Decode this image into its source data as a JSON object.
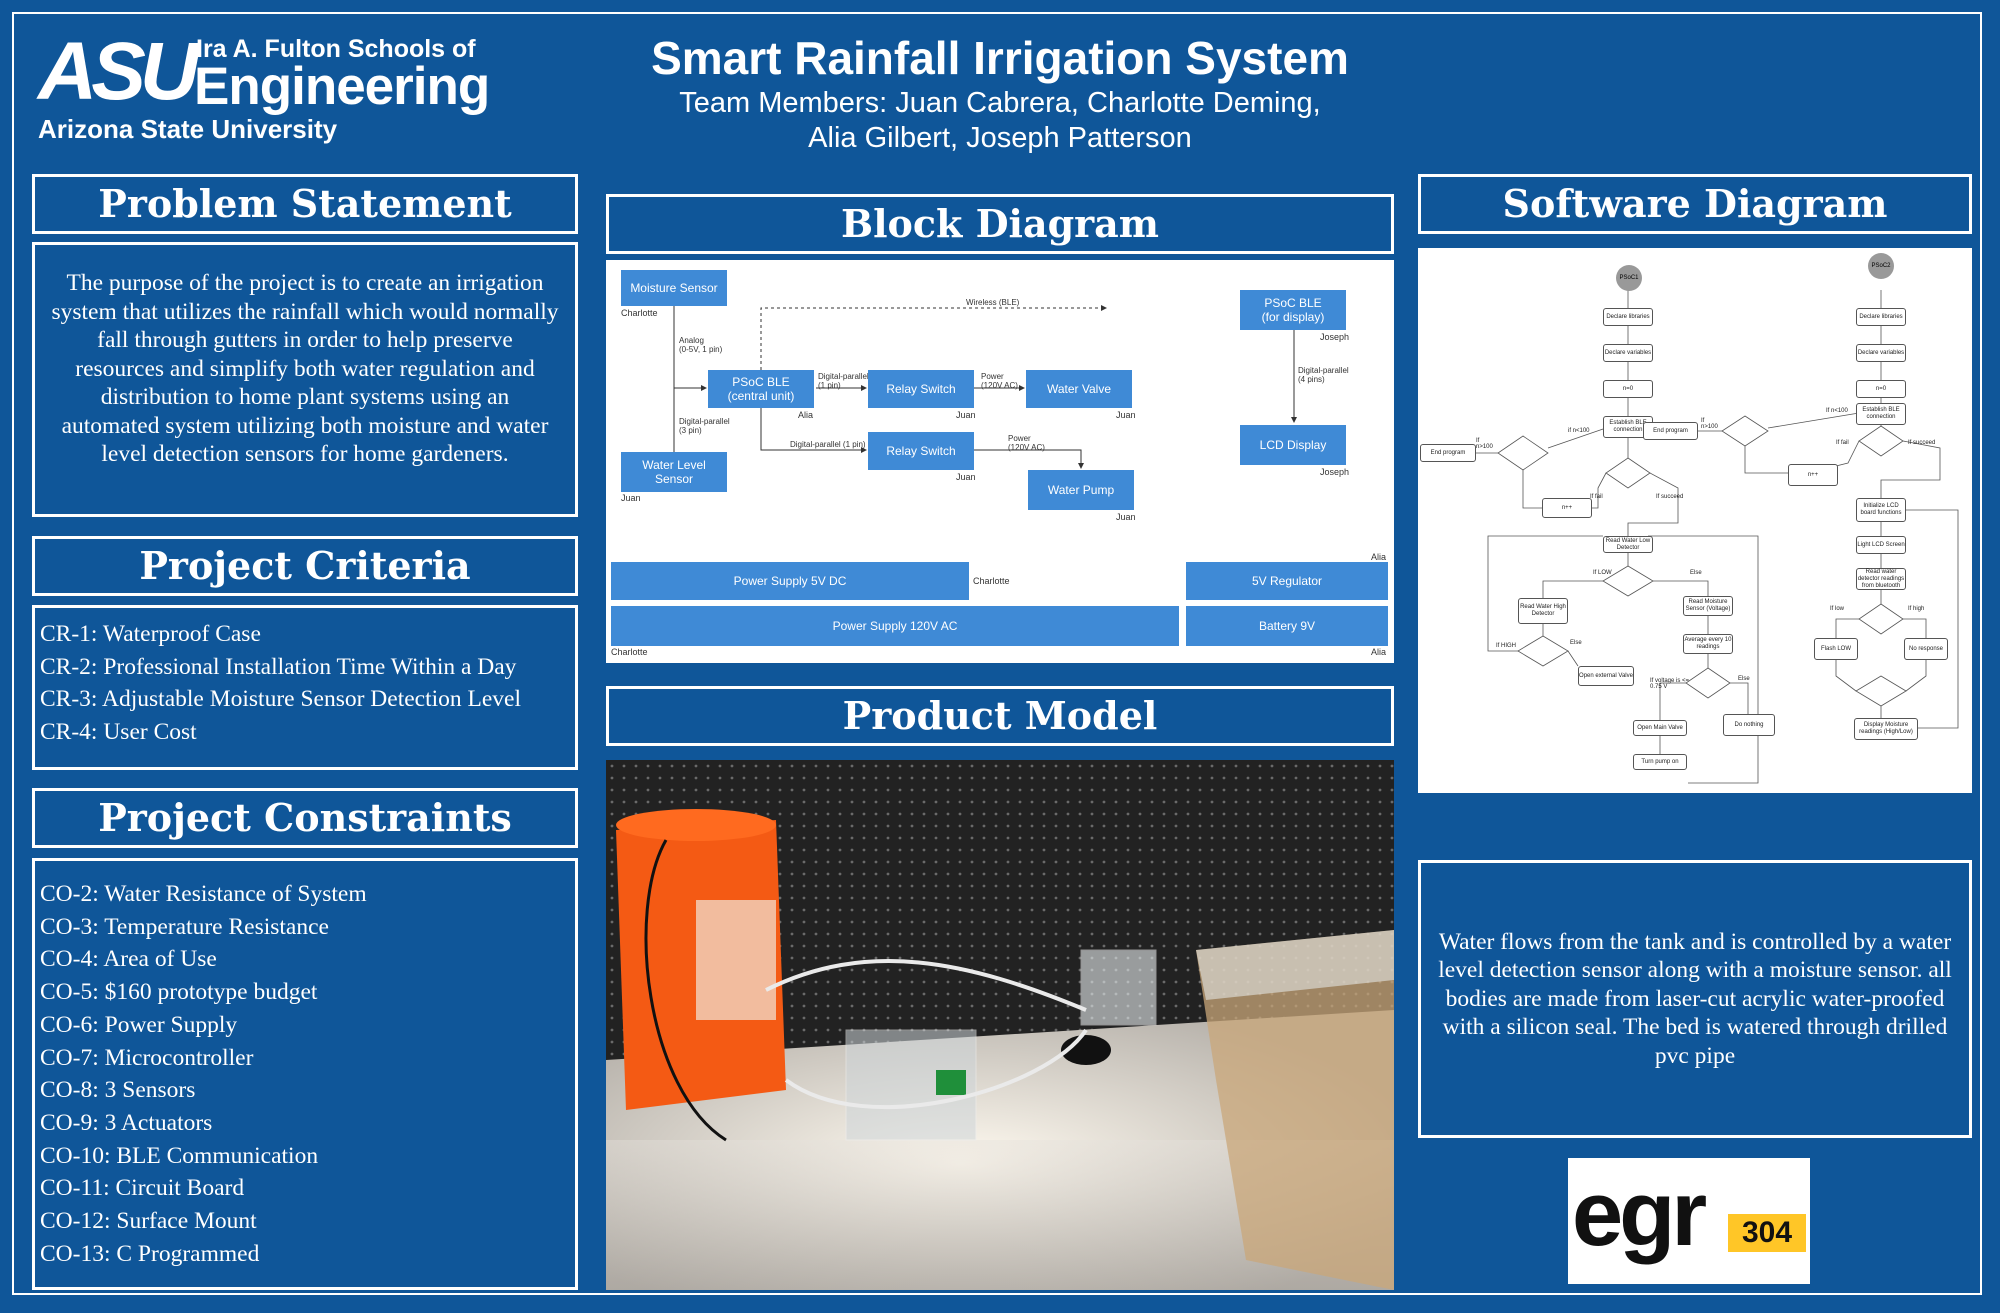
{
  "header": {
    "logo": {
      "asu": "ASU",
      "school": "Ira A. Fulton Schools of",
      "engineering": "Engineering",
      "university": "Arizona State University"
    },
    "title": "Smart Rainfall Irrigation System",
    "team_line1": "Team Members: Juan Cabrera, Charlotte Deming,",
    "team_line2": "Alia Gilbert, Joseph Patterson"
  },
  "problem": {
    "heading": "Problem Statement",
    "text": "The purpose of the project is to create an irrigation system that utilizes the rainfall which would normally fall through gutters in order to help preserve resources and simplify both water regulation and distribution to home plant systems using an automated system utilizing both moisture and water level detection sensors for home gardeners."
  },
  "criteria": {
    "heading": "Project Criteria",
    "items": [
      "CR-1: Waterproof Case",
      "CR-2: Professional Installation Time Within a Day",
      "CR-3: Adjustable Moisture Sensor Detection Level",
      "CR-4: User Cost"
    ]
  },
  "constraints": {
    "heading": "Project Constraints",
    "items": [
      "CO-2: Water Resistance of System",
      "CO-3: Temperature Resistance",
      "CO-4: Area of Use",
      "CO-5: $160 prototype budget",
      "CO-6: Power Supply",
      "CO-7: Microcontroller",
      "CO-8: 3 Sensors",
      "CO-9: 3 Actuators",
      "CO-10: BLE Communication",
      "CO-11: Circuit Board",
      "CO-12: Surface Mount",
      "CO-13: C Programmed"
    ]
  },
  "block": {
    "heading": "Block Diagram",
    "moisture": "Moisture Sensor",
    "charlotte": "Charlotte",
    "analog": "Analog\n(0-5V, 1 pin)",
    "wireless": "Wireless (BLE)",
    "psoc_central": "PSoC BLE\n(central unit)",
    "alia": "Alia",
    "dp1": "Digital-parallel\n(1 pin)",
    "relay1": "Relay Switch",
    "juan": "Juan",
    "power1": "Power\n(120V AC)",
    "valve": "Water Valve",
    "psoc_display": "PSoC BLE\n(for display)",
    "joseph": "Joseph",
    "dp4": "Digital-parallel\n(4 pins)",
    "lcd": "LCD Display",
    "dp3": "Digital-parallel\n(3 pin)",
    "waterlevel": "Water Level\nSensor",
    "dp1b": "Digital-parallel (1 pin)",
    "relay2": "Relay Switch",
    "power2": "Power\n(120V AC)",
    "pump": "Water Pump",
    "ps5": "Power Supply 5V DC",
    "reg5": "5V Regulator",
    "ps120": "Power Supply 120V AC",
    "bat9": "Battery 9V"
  },
  "software": {
    "heading": "Software Diagram",
    "psoc1": "PSoC1",
    "psoc2": "PSoC2",
    "declare_libs": "Declare libraries",
    "declare_vars": "Declare variables",
    "n0": "n=0",
    "establish": "Establish BLE connection",
    "if_n100": "if n<100",
    "if_n100b": "If n<100",
    "if_n100c": "If\nn>100",
    "end_program": "End program",
    "if_fail": "If fail",
    "if_succeed": "If succeed",
    "n_plus": "n++",
    "read_low": "Read Water Low Detector",
    "if_low": "If LOW",
    "else": "Else",
    "read_high": "Read Water High Detector",
    "read_moist": "Read Moisture Sensor (Voltage)",
    "if_high": "If HIGH",
    "avg": "Average every 10 readings",
    "open_ext": "Open external Valve",
    "if_volt": "If voltage is <= 0.75 V",
    "open_main": "Open Main Valve",
    "do_nothing": "Do nothing",
    "pump_on": "Turn pump on",
    "init_lcd": "Initialize LCD board functions",
    "light_lcd": "Light LCD Screen",
    "read_water_bt": "Read water detector readings from bluetooth",
    "if_low2": "If low",
    "if_high2": "If high",
    "flash_low": "Flash LOW",
    "no_resp": "No response",
    "display_moist": "Display Moisture readings (High/Low)"
  },
  "product": {
    "heading": "Product Model",
    "description": "Water flows from the tank and is controlled by a water level detection sensor  along with a moisture sensor. all bodies are made from laser-cut acrylic water-proofed with a silicon seal. The bed is watered through drilled pvc pipe"
  },
  "course_logo": {
    "egr": "egr",
    "num": "304"
  },
  "colors": {
    "background": "#0f5699",
    "block": "#3f8ad6",
    "egr_gold": "#ffc627"
  }
}
